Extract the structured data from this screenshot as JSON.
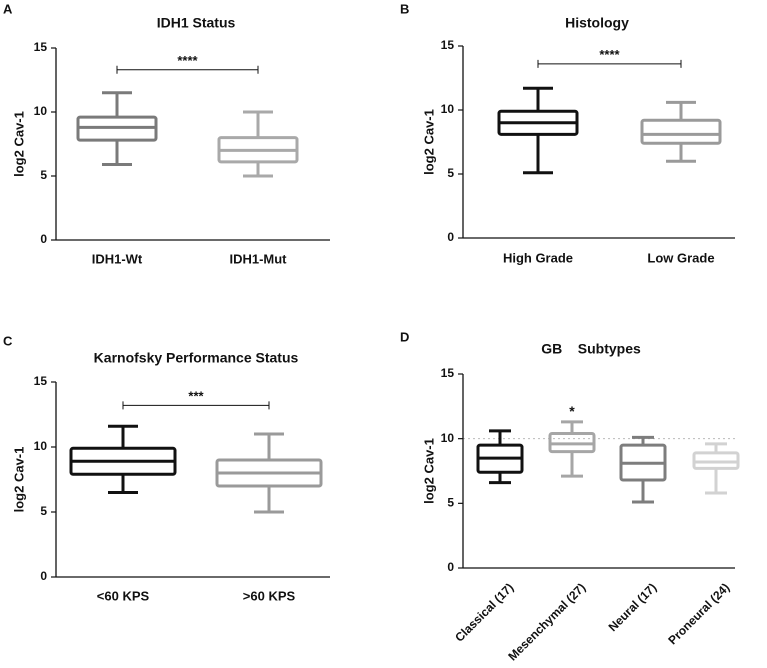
{
  "chart_data": [
    {
      "type": "boxplot",
      "panel_letter": "A",
      "title": "IDH1 Status",
      "ylabel": "log2 Cav-1",
      "xlabel": "",
      "ylim": [
        0,
        15
      ],
      "yticks": [
        0,
        5,
        10,
        15
      ],
      "categories": [
        "IDH1-Wt",
        "IDH1-Mut"
      ],
      "boxes": [
        {
          "min": 5.9,
          "q1": 7.8,
          "median": 8.8,
          "q3": 9.6,
          "max": 11.5,
          "color": "#7a7a7a"
        },
        {
          "min": 5.0,
          "q1": 6.1,
          "median": 7.0,
          "q3": 8.0,
          "max": 10.0,
          "color": "#a9a9a9"
        }
      ],
      "significance": [
        {
          "from": 0,
          "to": 1,
          "y": 13.3,
          "label": "****"
        }
      ]
    },
    {
      "type": "boxplot",
      "panel_letter": "B",
      "title": "Histology",
      "ylabel": "log2 Cav-1",
      "xlabel": "",
      "ylim": [
        0,
        15
      ],
      "yticks": [
        0,
        5,
        10,
        15
      ],
      "categories": [
        "High Grade",
        "Low Grade"
      ],
      "boxes": [
        {
          "min": 5.1,
          "q1": 8.1,
          "median": 9.0,
          "q3": 9.9,
          "max": 11.7,
          "color": "#111111"
        },
        {
          "min": 6.0,
          "q1": 7.4,
          "median": 8.1,
          "q3": 9.2,
          "max": 10.6,
          "color": "#9a9a9a"
        }
      ],
      "significance": [
        {
          "from": 0,
          "to": 1,
          "y": 13.6,
          "label": "****"
        }
      ]
    },
    {
      "type": "boxplot",
      "panel_letter": "C",
      "title": "Karnofsky Performance Status",
      "ylabel": "log2 Cav-1",
      "xlabel": "",
      "ylim": [
        0,
        15
      ],
      "yticks": [
        0,
        5,
        10,
        15
      ],
      "categories": [
        "<60 KPS",
        ">60 KPS"
      ],
      "boxes": [
        {
          "min": 6.5,
          "q1": 7.9,
          "median": 8.9,
          "q3": 9.9,
          "max": 11.6,
          "color": "#111111"
        },
        {
          "min": 5.0,
          "q1": 7.0,
          "median": 8.0,
          "q3": 9.0,
          "max": 11.0,
          "color": "#9a9a9a"
        }
      ],
      "significance": [
        {
          "from": 0,
          "to": 1,
          "y": 13.2,
          "label": "***"
        }
      ]
    },
    {
      "type": "boxplot",
      "panel_letter": "D",
      "title": "GB    Subtypes",
      "ylabel": "log2 Cav-1",
      "xlabel": "",
      "ylim": [
        0,
        15
      ],
      "yticks": [
        0,
        5,
        10,
        15
      ],
      "categories": [
        "Classical (17)",
        "Mesenchymal (27)",
        "Neural (17)",
        "Proneural (24)"
      ],
      "rotate_labels": true,
      "reference_line": 10,
      "boxes": [
        {
          "min": 6.6,
          "q1": 7.4,
          "median": 8.5,
          "q3": 9.5,
          "max": 10.6,
          "color": "#111111"
        },
        {
          "min": 7.1,
          "q1": 9.0,
          "median": 9.6,
          "q3": 10.4,
          "max": 11.3,
          "color": "#a6a6a6"
        },
        {
          "min": 5.1,
          "q1": 6.8,
          "median": 8.1,
          "q3": 9.5,
          "max": 10.1,
          "color": "#7d7d7d"
        },
        {
          "min": 5.8,
          "q1": 7.7,
          "median": 8.2,
          "q3": 8.9,
          "max": 9.6,
          "color": "#d2d2d2"
        }
      ],
      "annotations": [
        {
          "index": 1,
          "label": "*"
        }
      ]
    }
  ]
}
